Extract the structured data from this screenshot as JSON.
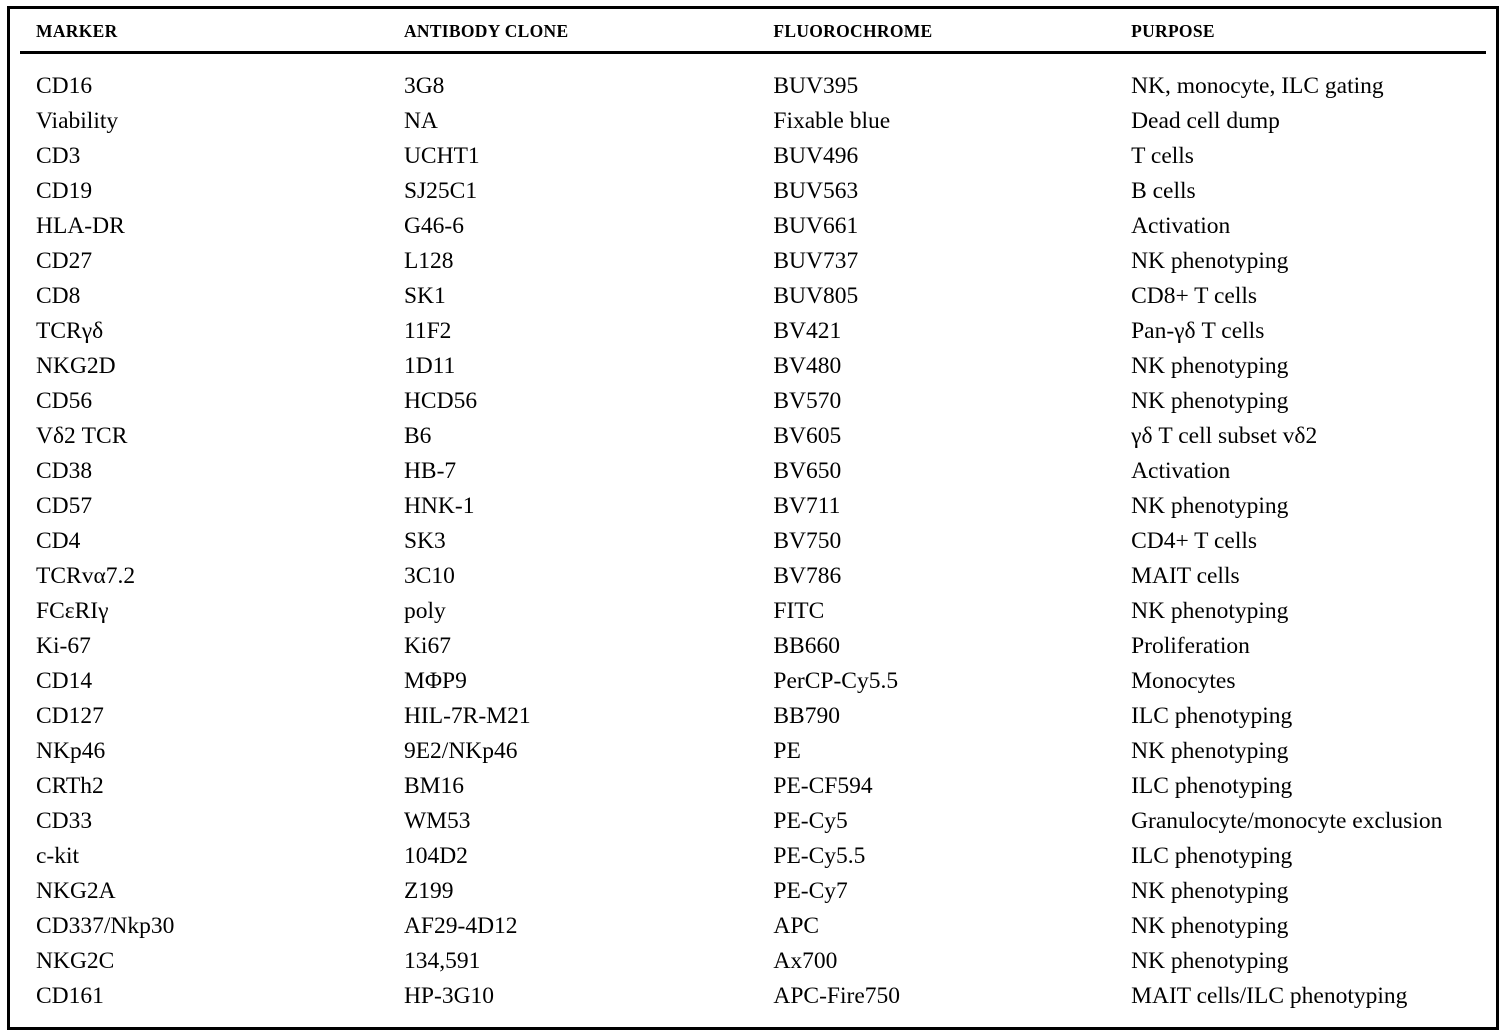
{
  "table": {
    "title": "antibody-panel-table",
    "columns": [
      "MARKER",
      "ANTIBODY CLONE",
      "FLUOROCHROME",
      "PURPOSE"
    ],
    "rows": [
      [
        "CD16",
        "3G8",
        "BUV395",
        "NK, monocyte, ILC gating"
      ],
      [
        "Viability",
        "NA",
        "Fixable blue",
        "Dead cell dump"
      ],
      [
        "CD3",
        "UCHT1",
        "BUV496",
        "T cells"
      ],
      [
        "CD19",
        "SJ25C1",
        "BUV563",
        "B cells"
      ],
      [
        "HLA-DR",
        "G46-6",
        "BUV661",
        "Activation"
      ],
      [
        "CD27",
        "L128",
        "BUV737",
        "NK phenotyping"
      ],
      [
        "CD8",
        "SK1",
        "BUV805",
        "CD8+ T cells"
      ],
      [
        "TCRγδ",
        "11F2",
        "BV421",
        "Pan-γδ T cells"
      ],
      [
        "NKG2D",
        "1D11",
        "BV480",
        "NK phenotyping"
      ],
      [
        "CD56",
        "HCD56",
        "BV570",
        "NK phenotyping"
      ],
      [
        "Vδ2 TCR",
        "B6",
        "BV605",
        "γδ T cell subset vδ2"
      ],
      [
        "CD38",
        "HB-7",
        "BV650",
        "Activation"
      ],
      [
        "CD57",
        "HNK-1",
        "BV711",
        "NK phenotyping"
      ],
      [
        "CD4",
        "SK3",
        "BV750",
        "CD4+ T cells"
      ],
      [
        "TCRvα7.2",
        "3C10",
        "BV786",
        "MAIT cells"
      ],
      [
        "FCεRIγ",
        "poly",
        "FITC",
        "NK phenotyping"
      ],
      [
        "Ki-67",
        "Ki67",
        "BB660",
        "Proliferation"
      ],
      [
        "CD14",
        "MΦP9",
        "PerCP-Cy5.5",
        "Monocytes"
      ],
      [
        "CD127",
        "HIL-7R-M21",
        "BB790",
        "ILC phenotyping"
      ],
      [
        "NKp46",
        "9E2/NKp46",
        "PE",
        "NK phenotyping"
      ],
      [
        "CRTh2",
        "BM16",
        "PE-CF594",
        "ILC phenotyping"
      ],
      [
        "CD33",
        "WM53",
        "PE-Cy5",
        "Granulocyte/monocyte exclusion"
      ],
      [
        "c-kit",
        "104D2",
        "PE-Cy5.5",
        "ILC phenotyping"
      ],
      [
        "NKG2A",
        "Z199",
        "PE-Cy7",
        "NK phenotyping"
      ],
      [
        "CD337/Nkp30",
        "AF29-4D12",
        "APC",
        "NK phenotyping"
      ],
      [
        "NKG2C",
        "134,591",
        "Ax700",
        "NK phenotyping"
      ],
      [
        "CD161",
        "HP-3G10",
        "APC-Fire750",
        "MAIT cells/ILC phenotyping"
      ]
    ],
    "colors": {
      "border": "#000000",
      "text": "#000000",
      "background": "#ffffff"
    }
  }
}
